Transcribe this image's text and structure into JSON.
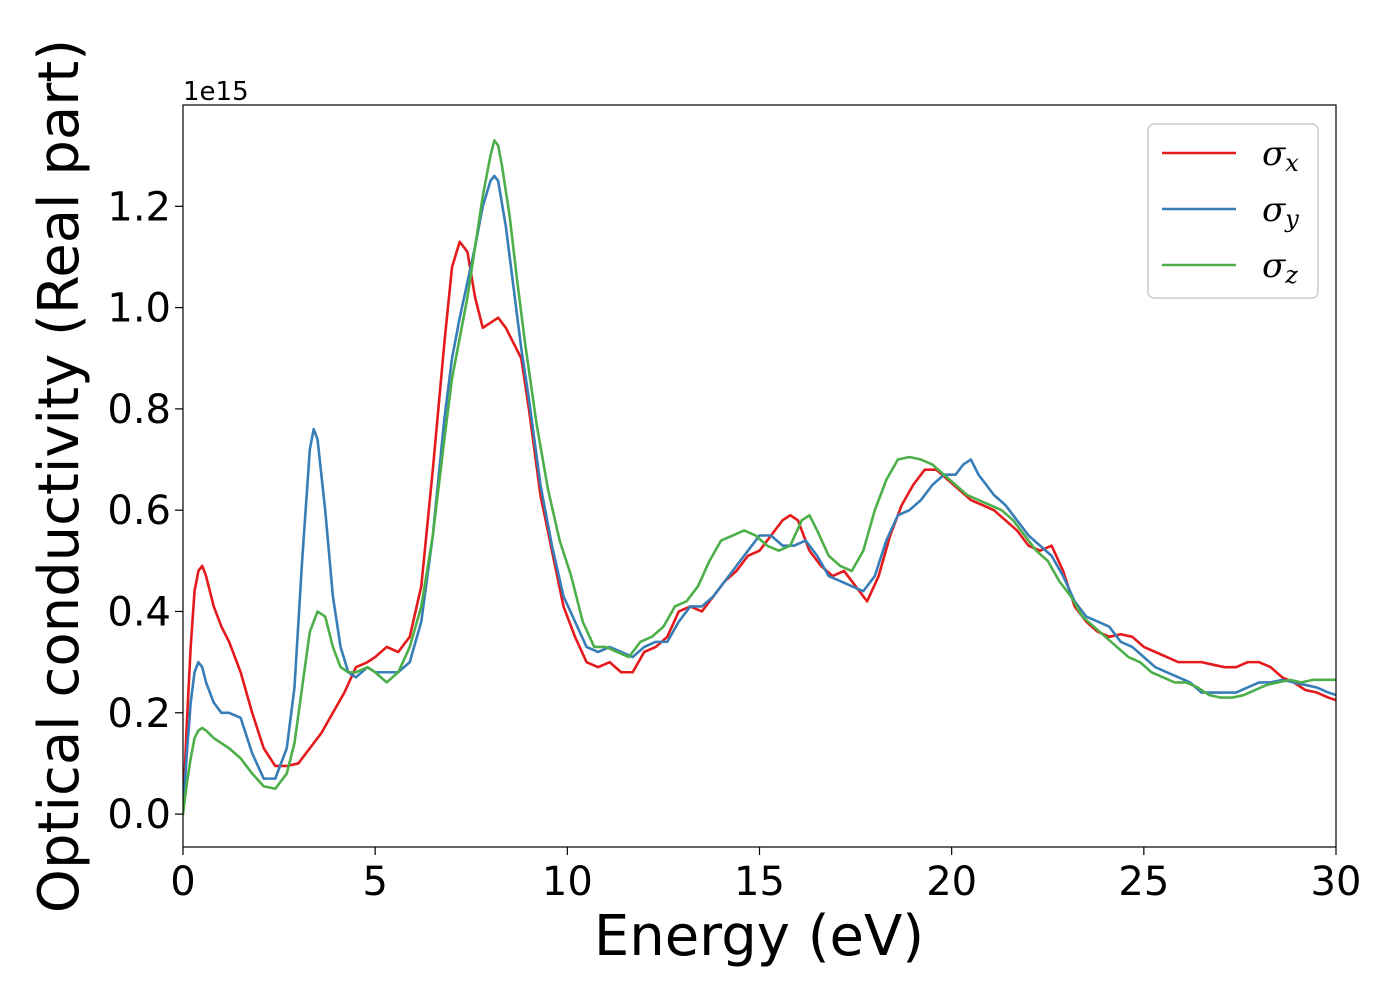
{
  "chart_data": {
    "type": "line",
    "title": "",
    "xlabel": "Energy (eV)",
    "ylabel": "Optical conductivity (Real part)",
    "y_offset_label": "1e15",
    "y_scale_factor": 1000000000000000.0,
    "xlim": [
      0,
      30
    ],
    "ylim": [
      -0.065,
      1.4
    ],
    "xticks": [
      0,
      5,
      10,
      15,
      20,
      25,
      30
    ],
    "xtick_labels": [
      "0",
      "5",
      "10",
      "15",
      "20",
      "25",
      "30"
    ],
    "yticks": [
      0.0,
      0.2,
      0.4,
      0.6,
      0.8,
      1.0,
      1.2
    ],
    "ytick_labels": [
      "0.0",
      "0.2",
      "0.4",
      "0.6",
      "0.8",
      "1.0",
      "1.2"
    ],
    "grid": false,
    "legend_position": "top-right",
    "series": [
      {
        "name": "σx",
        "symbol": "σ",
        "subscript": "x",
        "color": "#e41a1c",
        "x": [
          0,
          0.1,
          0.2,
          0.3,
          0.4,
          0.5,
          0.6,
          0.8,
          1.0,
          1.2,
          1.5,
          1.8,
          2.1,
          2.4,
          2.7,
          3.0,
          3.3,
          3.6,
          3.9,
          4.2,
          4.5,
          4.8,
          5.0,
          5.3,
          5.6,
          5.9,
          6.2,
          6.5,
          6.8,
          7.0,
          7.2,
          7.4,
          7.6,
          7.8,
          8.0,
          8.2,
          8.4,
          8.6,
          8.8,
          9.0,
          9.3,
          9.6,
          9.9,
          10.2,
          10.5,
          10.8,
          11.1,
          11.4,
          11.7,
          12.0,
          12.3,
          12.6,
          12.9,
          13.2,
          13.5,
          13.8,
          14.1,
          14.4,
          14.7,
          15.0,
          15.3,
          15.6,
          15.8,
          16.0,
          16.3,
          16.6,
          16.9,
          17.2,
          17.5,
          17.8,
          18.1,
          18.4,
          18.7,
          19.0,
          19.3,
          19.6,
          19.9,
          20.2,
          20.5,
          20.8,
          21.1,
          21.4,
          21.7,
          22.0,
          22.3,
          22.6,
          22.9,
          23.2,
          23.5,
          23.8,
          24.1,
          24.4,
          24.7,
          25.0,
          25.3,
          25.6,
          25.9,
          26.2,
          26.5,
          26.8,
          27.1,
          27.4,
          27.7,
          28.0,
          28.3,
          28.6,
          28.9,
          29.2,
          29.5,
          29.8,
          30.0
        ],
        "values": [
          0.0,
          0.18,
          0.33,
          0.44,
          0.48,
          0.49,
          0.47,
          0.41,
          0.37,
          0.34,
          0.28,
          0.2,
          0.13,
          0.095,
          0.095,
          0.1,
          0.13,
          0.16,
          0.2,
          0.24,
          0.29,
          0.3,
          0.31,
          0.33,
          0.32,
          0.35,
          0.45,
          0.68,
          0.93,
          1.08,
          1.13,
          1.11,
          1.02,
          0.96,
          0.97,
          0.98,
          0.96,
          0.93,
          0.9,
          0.8,
          0.63,
          0.52,
          0.41,
          0.35,
          0.3,
          0.29,
          0.3,
          0.28,
          0.28,
          0.32,
          0.33,
          0.35,
          0.4,
          0.41,
          0.4,
          0.43,
          0.46,
          0.48,
          0.51,
          0.52,
          0.55,
          0.58,
          0.59,
          0.58,
          0.52,
          0.49,
          0.47,
          0.48,
          0.45,
          0.42,
          0.47,
          0.55,
          0.61,
          0.65,
          0.68,
          0.68,
          0.66,
          0.64,
          0.62,
          0.61,
          0.6,
          0.58,
          0.56,
          0.53,
          0.52,
          0.53,
          0.48,
          0.41,
          0.38,
          0.36,
          0.35,
          0.355,
          0.35,
          0.33,
          0.32,
          0.31,
          0.3,
          0.3,
          0.3,
          0.295,
          0.29,
          0.29,
          0.3,
          0.3,
          0.29,
          0.27,
          0.26,
          0.245,
          0.24,
          0.23,
          0.225
        ]
      },
      {
        "name": "σy",
        "symbol": "σ",
        "subscript": "y",
        "color": "#377eb8",
        "x": [
          0,
          0.1,
          0.2,
          0.3,
          0.4,
          0.5,
          0.6,
          0.8,
          1.0,
          1.2,
          1.5,
          1.8,
          2.1,
          2.4,
          2.7,
          2.9,
          3.1,
          3.3,
          3.4,
          3.5,
          3.7,
          3.9,
          4.1,
          4.3,
          4.5,
          4.8,
          5.0,
          5.3,
          5.6,
          5.9,
          6.2,
          6.5,
          6.8,
          7.0,
          7.2,
          7.4,
          7.6,
          7.8,
          8.0,
          8.1,
          8.2,
          8.4,
          8.6,
          8.8,
          9.0,
          9.3,
          9.6,
          9.9,
          10.2,
          10.5,
          10.8,
          11.1,
          11.4,
          11.7,
          12.0,
          12.3,
          12.6,
          12.9,
          13.2,
          13.5,
          13.8,
          14.1,
          14.4,
          14.7,
          15.0,
          15.3,
          15.6,
          15.9,
          16.2,
          16.5,
          16.8,
          17.1,
          17.4,
          17.7,
          18.0,
          18.3,
          18.6,
          18.9,
          19.2,
          19.5,
          19.8,
          20.1,
          20.3,
          20.5,
          20.7,
          20.9,
          21.1,
          21.4,
          21.7,
          22.0,
          22.3,
          22.6,
          22.9,
          23.2,
          23.5,
          23.8,
          24.1,
          24.4,
          24.7,
          25.0,
          25.3,
          25.6,
          25.9,
          26.2,
          26.5,
          26.8,
          27.1,
          27.4,
          27.7,
          28.0,
          28.3,
          28.6,
          28.9,
          29.2,
          29.5,
          29.8,
          30.0
        ],
        "values": [
          0.0,
          0.12,
          0.22,
          0.28,
          0.3,
          0.29,
          0.26,
          0.22,
          0.2,
          0.2,
          0.19,
          0.12,
          0.07,
          0.07,
          0.13,
          0.25,
          0.5,
          0.72,
          0.76,
          0.74,
          0.6,
          0.43,
          0.33,
          0.28,
          0.27,
          0.29,
          0.28,
          0.28,
          0.28,
          0.3,
          0.38,
          0.55,
          0.78,
          0.9,
          0.98,
          1.05,
          1.12,
          1.2,
          1.25,
          1.26,
          1.25,
          1.16,
          1.04,
          0.92,
          0.82,
          0.65,
          0.53,
          0.43,
          0.38,
          0.33,
          0.32,
          0.33,
          0.32,
          0.31,
          0.33,
          0.34,
          0.34,
          0.38,
          0.41,
          0.41,
          0.43,
          0.46,
          0.49,
          0.52,
          0.55,
          0.55,
          0.53,
          0.53,
          0.54,
          0.51,
          0.47,
          0.46,
          0.45,
          0.44,
          0.47,
          0.54,
          0.59,
          0.6,
          0.62,
          0.65,
          0.67,
          0.67,
          0.69,
          0.7,
          0.67,
          0.65,
          0.63,
          0.61,
          0.58,
          0.55,
          0.53,
          0.51,
          0.47,
          0.42,
          0.39,
          0.38,
          0.37,
          0.34,
          0.33,
          0.31,
          0.29,
          0.28,
          0.27,
          0.26,
          0.24,
          0.24,
          0.24,
          0.24,
          0.25,
          0.26,
          0.26,
          0.265,
          0.26,
          0.255,
          0.25,
          0.24,
          0.235
        ]
      },
      {
        "name": "σz",
        "symbol": "σ",
        "subscript": "z",
        "color": "#4daf4a",
        "x": [
          0,
          0.1,
          0.2,
          0.3,
          0.4,
          0.5,
          0.6,
          0.8,
          1.0,
          1.2,
          1.5,
          1.8,
          2.1,
          2.4,
          2.7,
          2.9,
          3.1,
          3.3,
          3.5,
          3.7,
          3.9,
          4.1,
          4.3,
          4.5,
          4.8,
          5.0,
          5.3,
          5.6,
          5.9,
          6.2,
          6.5,
          6.8,
          7.0,
          7.2,
          7.4,
          7.6,
          7.8,
          8.0,
          8.1,
          8.2,
          8.3,
          8.5,
          8.7,
          8.9,
          9.2,
          9.5,
          9.8,
          10.1,
          10.4,
          10.7,
          11.0,
          11.3,
          11.6,
          11.9,
          12.2,
          12.5,
          12.8,
          13.1,
          13.4,
          13.7,
          14.0,
          14.3,
          14.6,
          14.9,
          15.2,
          15.5,
          15.8,
          16.1,
          16.3,
          16.5,
          16.8,
          17.1,
          17.4,
          17.7,
          18.0,
          18.3,
          18.6,
          18.9,
          19.2,
          19.5,
          19.8,
          20.1,
          20.4,
          20.7,
          21.0,
          21.3,
          21.6,
          21.9,
          22.2,
          22.5,
          22.8,
          23.1,
          23.4,
          23.7,
          24.0,
          24.3,
          24.6,
          24.9,
          25.2,
          25.5,
          25.8,
          26.1,
          26.4,
          26.7,
          27.0,
          27.3,
          27.6,
          27.9,
          28.2,
          28.5,
          28.8,
          29.1,
          29.4,
          29.7,
          30.0
        ],
        "values": [
          0.0,
          0.06,
          0.11,
          0.15,
          0.165,
          0.17,
          0.165,
          0.15,
          0.14,
          0.13,
          0.11,
          0.08,
          0.055,
          0.05,
          0.08,
          0.14,
          0.25,
          0.36,
          0.4,
          0.39,
          0.33,
          0.29,
          0.28,
          0.28,
          0.29,
          0.28,
          0.26,
          0.28,
          0.33,
          0.41,
          0.55,
          0.74,
          0.86,
          0.94,
          1.02,
          1.12,
          1.22,
          1.3,
          1.33,
          1.32,
          1.28,
          1.18,
          1.05,
          0.93,
          0.77,
          0.64,
          0.54,
          0.47,
          0.38,
          0.33,
          0.33,
          0.32,
          0.31,
          0.34,
          0.35,
          0.37,
          0.41,
          0.42,
          0.45,
          0.5,
          0.54,
          0.55,
          0.56,
          0.55,
          0.53,
          0.52,
          0.53,
          0.58,
          0.59,
          0.56,
          0.51,
          0.49,
          0.48,
          0.52,
          0.6,
          0.66,
          0.7,
          0.705,
          0.7,
          0.69,
          0.67,
          0.65,
          0.63,
          0.62,
          0.61,
          0.6,
          0.58,
          0.55,
          0.52,
          0.5,
          0.46,
          0.43,
          0.39,
          0.37,
          0.35,
          0.33,
          0.31,
          0.3,
          0.28,
          0.27,
          0.26,
          0.26,
          0.25,
          0.235,
          0.23,
          0.23,
          0.235,
          0.245,
          0.255,
          0.26,
          0.265,
          0.26,
          0.265,
          0.265,
          0.265
        ]
      }
    ]
  }
}
